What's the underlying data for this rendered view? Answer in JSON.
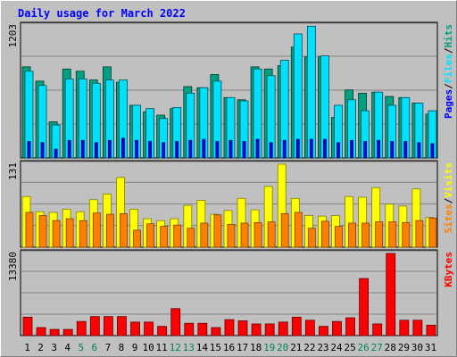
{
  "chart_data": {
    "type": "bar",
    "title": "Daily usage for March 2022",
    "categories": [
      "1",
      "2",
      "3",
      "4",
      "5",
      "6",
      "7",
      "8",
      "9",
      "10",
      "11",
      "12",
      "13",
      "14",
      "15",
      "16",
      "17",
      "18",
      "19",
      "20",
      "21",
      "22",
      "23",
      "24",
      "25",
      "26",
      "27",
      "28",
      "29",
      "30",
      "31"
    ],
    "weekend_days": [
      "5",
      "6",
      "12",
      "13",
      "19",
      "20",
      "26",
      "27"
    ],
    "panels": [
      {
        "name": "pages-files-hits",
        "ymax_label": "1203",
        "ymax": 1203,
        "legend": [
          "Pages",
          "/",
          "Files",
          "/",
          "Hits"
        ],
        "series": [
          {
            "name": "Hits",
            "color": "#00a080",
            "values": [
              830,
              700,
              330,
              810,
              790,
              710,
              830,
              690,
              480,
              420,
              390,
              450,
              650,
              640,
              760,
              550,
              530,
              830,
              810,
              840,
              1010,
              920,
              920,
              370,
              620,
              590,
              600,
              560,
              550,
              500,
              400
            ]
          },
          {
            "name": "Files",
            "color": "#00e0ff",
            "values": [
              790,
              660,
              300,
              720,
              720,
              680,
              710,
              710,
              480,
              450,
              360,
              460,
              590,
              640,
              700,
              550,
              520,
              810,
              750,
              890,
              1130,
              1200,
              930,
              480,
              530,
              430,
              600,
              480,
              550,
              500,
              430
            ]
          },
          {
            "name": "Pages",
            "color": "#0000ff",
            "values": [
              150,
              140,
              80,
              160,
              160,
              140,
              160,
              180,
              160,
              150,
              140,
              150,
              160,
              170,
              150,
              160,
              150,
              170,
              140,
              160,
              170,
              170,
              170,
              140,
              160,
              150,
              160,
              150,
              150,
              140,
              130
            ]
          }
        ]
      },
      {
        "name": "sites-visits",
        "ymax_label": "131",
        "ymax": 131,
        "legend": [
          "Sites",
          "/",
          "Visits"
        ],
        "series": [
          {
            "name": "Visits",
            "color": "#ffff00",
            "values": [
              80,
              56,
              55,
              60,
              56,
              75,
              84,
              110,
              60,
              45,
              42,
              45,
              66,
              74,
              52,
              58,
              77,
              59,
              96,
              131,
              77,
              50,
              49,
              50,
              80,
              79,
              94,
              68,
              65,
              92,
              47
            ]
          },
          {
            "name": "Sites",
            "color": "#ff8000",
            "values": [
              55,
              50,
              42,
              45,
              42,
              54,
              52,
              53,
              27,
              37,
              33,
              35,
              30,
              38,
              51,
              36,
              38,
              39,
              40,
              53,
              55,
              30,
              41,
              33,
              38,
              38,
              40,
              40,
              39,
              42,
              46
            ]
          }
        ]
      },
      {
        "name": "kbytes",
        "ymax_label": "13380",
        "ymax": 13380,
        "legend": [
          "KBytes"
        ],
        "series": [
          {
            "name": "KBytes",
            "color": "#ff0000",
            "values": [
              3000,
              1300,
              1000,
              1000,
              2300,
              3100,
              3100,
              3100,
              2200,
              2200,
              1500,
              4400,
              2000,
              2000,
              1300,
              2600,
              2400,
              1900,
              1900,
              2200,
              3000,
              2500,
              1500,
              2300,
              2900,
              9300,
              1900,
              13380,
              2500,
              2500,
              1700
            ]
          }
        ]
      }
    ],
    "colors": {
      "background": "#c0c0c0",
      "plot_background": "#c0c0c0",
      "title": "#0000ff",
      "weekday_label": "#000000",
      "weekend_label": "#00805c",
      "grid": "#707070",
      "legend_separator": "#000000"
    }
  }
}
